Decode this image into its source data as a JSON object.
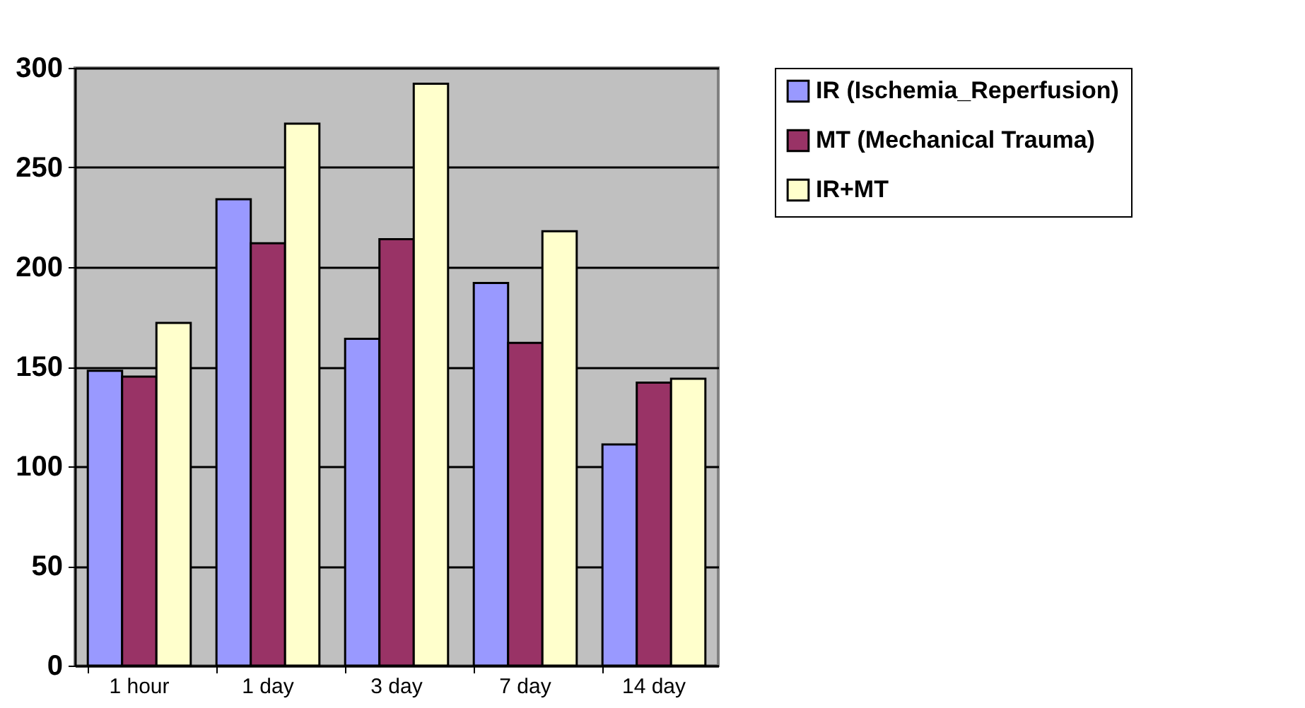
{
  "chart_data": {
    "type": "bar",
    "categories": [
      "1 hour",
      "1 day",
      "3 day",
      "7 day",
      "14 day"
    ],
    "series": [
      {
        "name": "IR (Ischemia_Reperfusion)",
        "color": "#9999ff",
        "values": [
          148,
          234,
          164,
          192,
          111
        ]
      },
      {
        "name": "MT (Mechanical Trauma)",
        "color": "#993366",
        "values": [
          145,
          212,
          214,
          162,
          142
        ]
      },
      {
        "name": "IR+MT",
        "color": "#ffffcc",
        "values": [
          172,
          272,
          292,
          218,
          144
        ]
      }
    ],
    "ylim": [
      0,
      300
    ],
    "yticks": [
      0,
      50,
      100,
      150,
      200,
      250,
      300
    ],
    "grid": "y",
    "legend": "top right"
  }
}
